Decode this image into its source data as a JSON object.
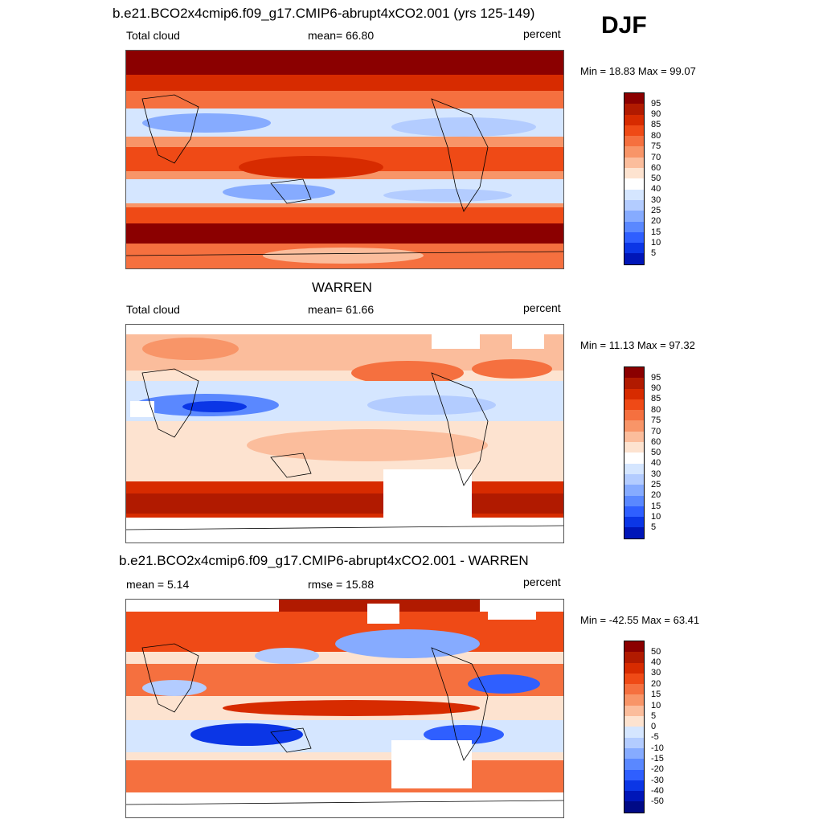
{
  "header": {
    "top_title": "b.e21.BCO2x4cmip6.f09_g17.CMIP6-abrupt4xCO2.001 (yrs 125-149)",
    "season": "DJF"
  },
  "panel1": {
    "left": "Total cloud",
    "center": "mean=  66.80",
    "right": "percent",
    "minmax": "Min =  18.83 Max =  99.07",
    "ticks": [
      "95",
      "90",
      "85",
      "80",
      "75",
      "70",
      "60",
      "50",
      "40",
      "30",
      "25",
      "20",
      "15",
      "10",
      "5"
    ]
  },
  "panel2": {
    "title": "WARREN",
    "left": "Total cloud",
    "center": "mean=  61.66",
    "right": "percent",
    "minmax": "Min =  11.13 Max =  97.32",
    "ticks": [
      "95",
      "90",
      "85",
      "80",
      "75",
      "70",
      "60",
      "50",
      "40",
      "30",
      "25",
      "20",
      "15",
      "10",
      "5"
    ]
  },
  "panel3": {
    "title": "b.e21.BCO2x4cmip6.f09_g17.CMIP6-abrupt4xCO2.001 - WARREN",
    "left": "mean =   5.14",
    "center": "rmse =  15.88",
    "right": "percent",
    "minmax": "Min = -42.55 Max =  63.41",
    "ticks": [
      "50",
      "40",
      "30",
      "20",
      "15",
      "10",
      "5",
      "0",
      "-5",
      "-10",
      "-15",
      "-20",
      "-30",
      "-40",
      "-50"
    ]
  },
  "colors": {
    "scale": [
      "#8b0000",
      "#b11a00",
      "#d72b00",
      "#ef4a16",
      "#f5703f",
      "#f89568",
      "#fbbd9c",
      "#fde3d0",
      "#ffffff",
      "#d5e6ff",
      "#b3ccff",
      "#86abff",
      "#5a88ff",
      "#2f5fff",
      "#0b36e6",
      "#0016b8",
      "#000a86"
    ]
  }
}
